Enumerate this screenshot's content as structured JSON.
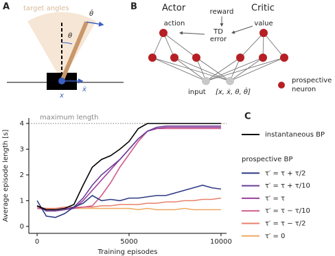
{
  "panel_a": {
    "label": "A",
    "target_label": "target angles",
    "theta": "θ",
    "theta_dot": "θ̇",
    "x": "x",
    "x_dot": "ẋ"
  },
  "panel_b": {
    "label": "B",
    "actor": "Actor",
    "critic": "Critic",
    "reward": "reward",
    "action": "action",
    "value": "value",
    "td": "TD",
    "error": "error",
    "input": "input",
    "input_vector": "[x, ẋ, θ, θ̇]",
    "legend_line1": "prospective",
    "legend_line2": "neuron"
  },
  "chart_data": {
    "type": "line",
    "panel_label": "C",
    "xlabel": "Training episodes",
    "ylabel": "Average episode length [s]",
    "annotation": "maximum length",
    "max_line": 4,
    "legend_group_title": "prospective BP",
    "xlim": [
      -450,
      10300
    ],
    "ylim": [
      -0.27,
      4.21
    ],
    "xticks": [
      0,
      5000,
      10000
    ],
    "yticks": [
      0,
      1,
      2,
      3,
      4
    ],
    "x": [
      0,
      500,
      1000,
      1500,
      2000,
      2500,
      3000,
      3500,
      4000,
      4500,
      5000,
      5500,
      6000,
      6500,
      7000,
      7500,
      8000,
      8500,
      9000,
      9500,
      10000
    ],
    "series": [
      {
        "name": "instantaneous BP",
        "color": "#000000",
        "values": [
          0.8,
          0.65,
          0.65,
          0.7,
          0.85,
          1.6,
          2.3,
          2.6,
          2.75,
          3.0,
          3.3,
          3.8,
          4.0,
          4.0,
          4.0,
          4.0,
          4.0,
          4.0,
          4.0,
          4.0,
          4.0
        ]
      },
      {
        "name": "τ′ = τ + τ/2",
        "color": "#2f3a84",
        "values": [
          1.0,
          0.4,
          0.35,
          0.5,
          0.75,
          0.9,
          1.2,
          1.0,
          1.05,
          1.0,
          1.1,
          1.1,
          1.15,
          1.2,
          1.2,
          1.3,
          1.4,
          1.5,
          1.6,
          1.5,
          1.45
        ]
      },
      {
        "name": "τ′ = τ + τ/10",
        "color": "#6a3e98",
        "values": [
          0.8,
          0.6,
          0.6,
          0.65,
          0.75,
          1.1,
          1.6,
          2.0,
          2.3,
          2.6,
          3.0,
          3.4,
          3.7,
          3.85,
          3.9,
          3.9,
          3.9,
          3.9,
          3.9,
          3.9,
          3.9
        ]
      },
      {
        "name": "τ′ = τ",
        "color": "#9c3d9a",
        "values": [
          0.8,
          0.6,
          0.6,
          0.65,
          0.7,
          1.0,
          1.4,
          1.8,
          2.2,
          2.6,
          3.0,
          3.4,
          3.7,
          3.8,
          3.85,
          3.85,
          3.85,
          3.85,
          3.85,
          3.85,
          3.85
        ]
      },
      {
        "name": "τ′ = τ − τ/10",
        "color": "#d05a8a",
        "values": [
          0.7,
          0.65,
          0.65,
          0.7,
          0.7,
          0.75,
          0.8,
          1.2,
          1.7,
          2.3,
          2.8,
          3.3,
          3.7,
          3.8,
          3.8,
          3.8,
          3.8,
          3.8,
          3.8,
          3.8,
          3.8
        ]
      },
      {
        "name": "τ′ = τ − τ/2",
        "color": "#e8806a",
        "values": [
          0.75,
          0.7,
          0.7,
          0.75,
          0.75,
          0.75,
          0.75,
          0.8,
          0.8,
          0.85,
          0.85,
          0.85,
          0.9,
          0.9,
          0.95,
          0.95,
          1.0,
          1.0,
          1.05,
          1.05,
          1.1
        ]
      },
      {
        "name": "τ′ = 0",
        "color": "#f0a860",
        "values": [
          0.7,
          0.7,
          0.65,
          0.7,
          0.7,
          0.7,
          0.7,
          0.7,
          0.7,
          0.7,
          0.7,
          0.65,
          0.7,
          0.65,
          0.65,
          0.65,
          0.7,
          0.65,
          0.65,
          0.65,
          0.65
        ]
      }
    ]
  }
}
